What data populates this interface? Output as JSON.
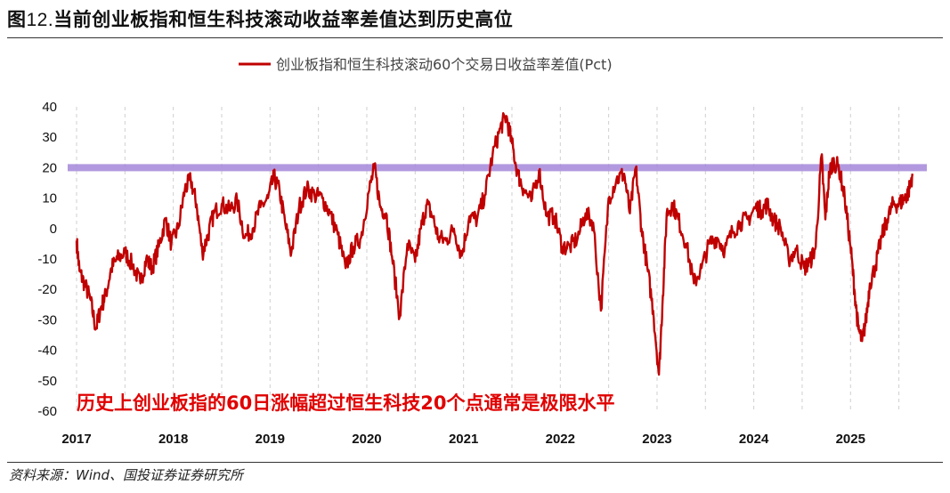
{
  "figure": {
    "title_prefix": "图",
    "title_number": "12.",
    "title_text": "当前创业板指和恒生科技滚动收益率差值达到历史高位",
    "source": "资料来源：Wind、国投证券证券研究所"
  },
  "colors": {
    "series": "#c00000",
    "threshold_band": "#a487d9",
    "grid": "#cfcfcf",
    "annotation": "#e00000"
  },
  "chart_data": {
    "type": "line",
    "legend": "创业板指和恒生科技滚动60个交易日收益率差值(Pct)",
    "legend_position": "top-center",
    "xlabel": "",
    "ylabel": "",
    "ylim": [
      -60,
      40
    ],
    "yticks": [
      40,
      30,
      20,
      10,
      0,
      -10,
      -20,
      -30,
      -40,
      -50,
      -60
    ],
    "xlim": [
      2017.0,
      2025.66
    ],
    "xticks": [
      "2017",
      "2018",
      "2019",
      "2020",
      "2021",
      "2022",
      "2023",
      "2024",
      "2025"
    ],
    "grid": "vertical dashed",
    "threshold": {
      "value": 20
    },
    "annotation": "历史上创业板指的60日涨幅超过恒生科技20个点通常是极限水平",
    "series": [
      {
        "name": "创业板指和恒生科技滚动60个交易日收益率差值(Pct)",
        "x": [
          2017.0,
          2017.03,
          2017.08,
          2017.14,
          2017.2,
          2017.25,
          2017.3,
          2017.36,
          2017.42,
          2017.5,
          2017.58,
          2017.66,
          2017.72,
          2017.78,
          2017.85,
          2017.92,
          2017.98,
          2018.05,
          2018.12,
          2018.18,
          2018.24,
          2018.3,
          2018.36,
          2018.42,
          2018.5,
          2018.58,
          2018.66,
          2018.74,
          2018.82,
          2018.9,
          2018.98,
          2019.04,
          2019.1,
          2019.16,
          2019.22,
          2019.3,
          2019.38,
          2019.46,
          2019.54,
          2019.62,
          2019.7,
          2019.78,
          2019.86,
          2019.94,
          2020.02,
          2020.08,
          2020.14,
          2020.2,
          2020.26,
          2020.34,
          2020.42,
          2020.5,
          2020.56,
          2020.62,
          2020.68,
          2020.74,
          2020.82,
          2020.9,
          2020.98,
          2021.06,
          2021.14,
          2021.22,
          2021.3,
          2021.38,
          2021.44,
          2021.5,
          2021.56,
          2021.62,
          2021.7,
          2021.78,
          2021.86,
          2021.94,
          2022.02,
          2022.1,
          2022.18,
          2022.26,
          2022.34,
          2022.42,
          2022.5,
          2022.58,
          2022.66,
          2022.72,
          2022.78,
          2022.84,
          2022.9,
          2022.96,
          2023.02,
          2023.06,
          2023.1,
          2023.16,
          2023.22,
          2023.3,
          2023.38,
          2023.46,
          2023.54,
          2023.62,
          2023.7,
          2023.78,
          2023.86,
          2023.94,
          2024.02,
          2024.08,
          2024.14,
          2024.2,
          2024.28,
          2024.36,
          2024.44,
          2024.52,
          2024.58,
          2024.64,
          2024.7,
          2024.74,
          2024.78,
          2024.82,
          2024.88,
          2024.94,
          2025.0,
          2025.04,
          2025.08,
          2025.12,
          2025.16,
          2025.2,
          2025.26,
          2025.32,
          2025.38,
          2025.44,
          2025.5,
          2025.56,
          2025.6,
          2025.64
        ],
        "values": [
          -4,
          -14,
          -18,
          -23,
          -33,
          -26,
          -22,
          -13,
          -10,
          -8,
          -12,
          -18,
          -10,
          -13,
          -6,
          3,
          -5,
          0,
          13,
          16,
          8,
          -8,
          -2,
          5,
          8,
          6,
          9,
          -3,
          0,
          7,
          10,
          17,
          12,
          1,
          -8,
          7,
          13,
          11,
          10,
          5,
          -2,
          -13,
          -6,
          -3,
          12,
          20,
          7,
          5,
          -9,
          -29,
          -5,
          -11,
          0,
          8,
          4,
          -3,
          -4,
          0,
          -9,
          4,
          3,
          11,
          24,
          33,
          37,
          28,
          18,
          13,
          9,
          19,
          4,
          4,
          -6,
          -6,
          -3,
          5,
          2,
          -27,
          10,
          16,
          18,
          5,
          20,
          0,
          -13,
          -27,
          -48,
          -22,
          5,
          8,
          3,
          -5,
          -18,
          -13,
          -5,
          -3,
          -7,
          -1,
          2,
          3,
          7,
          6,
          8,
          3,
          0,
          -10,
          -7,
          -13,
          -11,
          -6,
          24,
          3,
          18,
          22,
          20,
          10,
          -6,
          -20,
          -33,
          -37,
          -30,
          -18,
          -12,
          -3,
          3,
          8,
          8,
          10,
          12,
          18
        ]
      }
    ]
  }
}
